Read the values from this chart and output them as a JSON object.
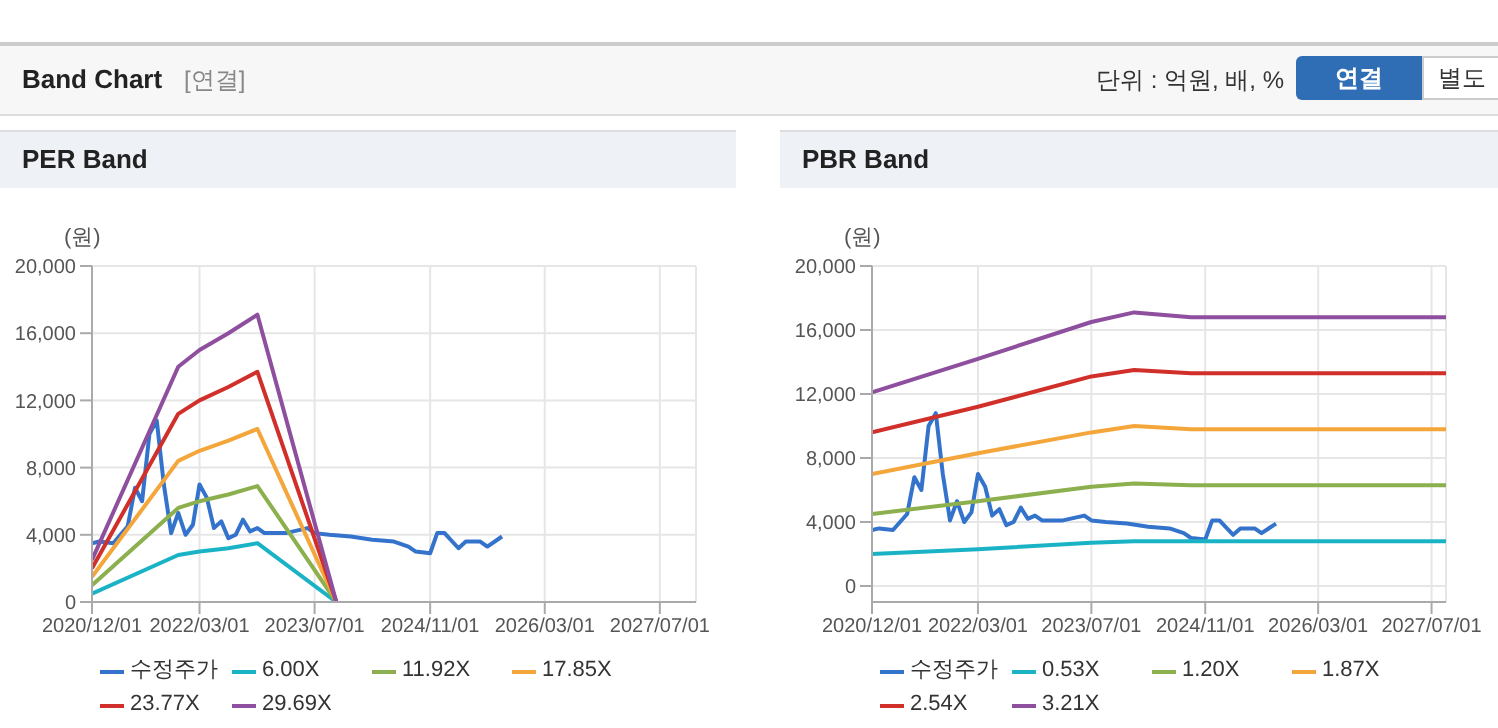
{
  "chart_data": [
    {
      "type": "other",
      "title": "Band Chart",
      "annotations": [
        "[연결]",
        "단위 : 억원, 배, %",
        "연결",
        "별도"
      ]
    },
    {
      "type": "line",
      "title": "PER Band",
      "ylabel": "(원)",
      "xlim": [
        "2020-12-01",
        "2027-12-01"
      ],
      "xticks": [
        {
          "value": "2020-12-01",
          "label": "2020/12/01"
        },
        {
          "value": "2022-03-01",
          "label": "2022/03/01"
        },
        {
          "value": "2023-07-01",
          "label": "2023/07/01"
        },
        {
          "value": "2024-11-01",
          "label": "2024/11/01"
        },
        {
          "value": "2026-03-01",
          "label": "2026/03/01"
        },
        {
          "value": "2027-07-01",
          "label": "2027/07/01"
        }
      ],
      "ylim": [
        0,
        20000
      ],
      "yticks": [
        0,
        {
          "value": 4000,
          "label": "4,000"
        },
        {
          "value": 8000,
          "label": "8,000"
        },
        {
          "value": 12000,
          "label": "12,000"
        },
        {
          "value": 16000,
          "label": "16,000"
        },
        {
          "value": 20000,
          "label": "20,000"
        }
      ],
      "grid": true,
      "legend": "bottom",
      "marker": "none",
      "series": [
        {
          "name": "수정주가",
          "color": "#3473cc",
          "x": [
            "2020-12",
            "2021-01",
            "2021-03",
            "2021-05",
            "2021-06",
            "2021-07",
            "2021-08",
            "2021-09",
            "2021-10",
            "2021-11",
            "2021-12",
            "2022-01",
            "2022-02",
            "2022-03",
            "2022-04",
            "2022-05",
            "2022-06",
            "2022-07",
            "2022-08",
            "2022-09",
            "2022-10",
            "2022-11",
            "2022-12",
            "2023-03",
            "2023-06",
            "2023-07",
            "2023-09",
            "2023-12",
            "2024-03",
            "2024-06",
            "2024-08",
            "2024-09",
            "2024-11",
            "2024-12",
            "2025-01",
            "2025-03",
            "2025-04",
            "2025-06",
            "2025-07",
            "2025-09"
          ],
          "values": [
            3500,
            3600,
            3500,
            4500,
            6800,
            6000,
            10000,
            10800,
            7000,
            4100,
            5300,
            4000,
            4600,
            7000,
            6200,
            4400,
            4800,
            3800,
            4000,
            4900,
            4200,
            4400,
            4100,
            4100,
            4400,
            4100,
            4000,
            3900,
            3700,
            3600,
            3300,
            3000,
            2900,
            4100,
            4100,
            3200,
            3600,
            3600,
            3300,
            3900
          ]
        },
        {
          "name": "6.00X",
          "color": "#1ab3c6",
          "x": [
            "2020-12",
            "2021-12",
            "2022-03",
            "2022-07",
            "2022-11",
            "2023-10"
          ],
          "values": [
            500,
            2800,
            3000,
            3200,
            3500,
            0
          ]
        },
        {
          "name": "11.92X",
          "color": "#8db04f",
          "x": [
            "2020-12",
            "2021-12",
            "2022-03",
            "2022-07",
            "2022-11",
            "2023-10"
          ],
          "values": [
            1000,
            5600,
            6000,
            6400,
            6900,
            0
          ]
        },
        {
          "name": "17.85X",
          "color": "#f4a63b",
          "x": [
            "2020-12",
            "2021-12",
            "2022-03",
            "2022-07",
            "2022-11",
            "2023-10"
          ],
          "values": [
            1500,
            8400,
            9000,
            9600,
            10300,
            0
          ]
        },
        {
          "name": "23.77X",
          "color": "#d12f2a",
          "x": [
            "2020-12",
            "2021-12",
            "2022-03",
            "2022-07",
            "2022-11",
            "2023-10"
          ],
          "values": [
            2000,
            11200,
            12000,
            12800,
            13700,
            0
          ]
        },
        {
          "name": "29.69X",
          "color": "#8e4f9e",
          "x": [
            "2020-12",
            "2021-12",
            "2022-03",
            "2022-07",
            "2022-11",
            "2023-10"
          ],
          "values": [
            2500,
            14000,
            15000,
            16000,
            17100,
            0
          ]
        }
      ]
    },
    {
      "type": "line",
      "title": "PBR Band",
      "ylabel": "(원)",
      "xlim": [
        "2020-12-01",
        "2027-09-01"
      ],
      "xticks": [
        {
          "value": "2020-12-01",
          "label": "2020/12/01"
        },
        {
          "value": "2022-03-01",
          "label": "2022/03/01"
        },
        {
          "value": "2023-07-01",
          "label": "2023/07/01"
        },
        {
          "value": "2024-11-01",
          "label": "2024/11/01"
        },
        {
          "value": "2026-03-01",
          "label": "2026/03/01"
        },
        {
          "value": "2027-07-01",
          "label": "2027/07/01"
        }
      ],
      "ylim": [
        -1000,
        20000
      ],
      "yticks": [
        0,
        {
          "value": 4000,
          "label": "4,000"
        },
        {
          "value": 8000,
          "label": "8,000"
        },
        {
          "value": 12000,
          "label": "12,000"
        },
        {
          "value": 16000,
          "label": "16,000"
        },
        {
          "value": 20000,
          "label": "20,000"
        }
      ],
      "grid": true,
      "legend": "bottom",
      "marker": "none",
      "series": [
        {
          "name": "수정주가",
          "color": "#3473cc",
          "x": [
            "2020-12",
            "2021-01",
            "2021-03",
            "2021-05",
            "2021-06",
            "2021-07",
            "2021-08",
            "2021-09",
            "2021-10",
            "2021-11",
            "2021-12",
            "2022-01",
            "2022-02",
            "2022-03",
            "2022-04",
            "2022-05",
            "2022-06",
            "2022-07",
            "2022-08",
            "2022-09",
            "2022-10",
            "2022-11",
            "2022-12",
            "2023-03",
            "2023-06",
            "2023-07",
            "2023-09",
            "2023-12",
            "2024-03",
            "2024-06",
            "2024-08",
            "2024-09",
            "2024-11",
            "2024-12",
            "2025-01",
            "2025-03",
            "2025-04",
            "2025-06",
            "2025-07",
            "2025-09"
          ],
          "values": [
            3500,
            3600,
            3500,
            4500,
            6800,
            6000,
            10000,
            10800,
            7000,
            4100,
            5300,
            4000,
            4600,
            7000,
            6200,
            4400,
            4800,
            3800,
            4000,
            4900,
            4200,
            4400,
            4100,
            4100,
            4400,
            4100,
            4000,
            3900,
            3700,
            3600,
            3300,
            3000,
            2900,
            4100,
            4100,
            3200,
            3600,
            3600,
            3300,
            3900
          ]
        },
        {
          "name": "0.53X",
          "color": "#1ab3c6",
          "x": [
            "2020-12",
            "2022-03",
            "2023-07",
            "2024-01",
            "2024-09",
            "2027-09"
          ],
          "values": [
            2000,
            2300,
            2700,
            2800,
            2800,
            2800
          ]
        },
        {
          "name": "1.20X",
          "color": "#8db04f",
          "x": [
            "2020-12",
            "2022-03",
            "2023-07",
            "2024-01",
            "2024-09",
            "2027-09"
          ],
          "values": [
            4500,
            5300,
            6200,
            6400,
            6300,
            6300
          ]
        },
        {
          "name": "1.87X",
          "color": "#f4a63b",
          "x": [
            "2020-12",
            "2022-03",
            "2023-07",
            "2024-01",
            "2024-09",
            "2027-09"
          ],
          "values": [
            7000,
            8300,
            9600,
            10000,
            9800,
            9800
          ]
        },
        {
          "name": "2.54X",
          "color": "#d12f2a",
          "x": [
            "2020-12",
            "2022-03",
            "2023-07",
            "2024-01",
            "2024-09",
            "2027-09"
          ],
          "values": [
            9600,
            11200,
            13100,
            13500,
            13300,
            13300
          ]
        },
        {
          "name": "3.21X",
          "color": "#8e4f9e",
          "x": [
            "2020-12",
            "2022-03",
            "2023-07",
            "2024-01",
            "2024-09",
            "2027-09"
          ],
          "values": [
            12100,
            14200,
            16500,
            17100,
            16800,
            16800
          ]
        }
      ]
    }
  ]
}
